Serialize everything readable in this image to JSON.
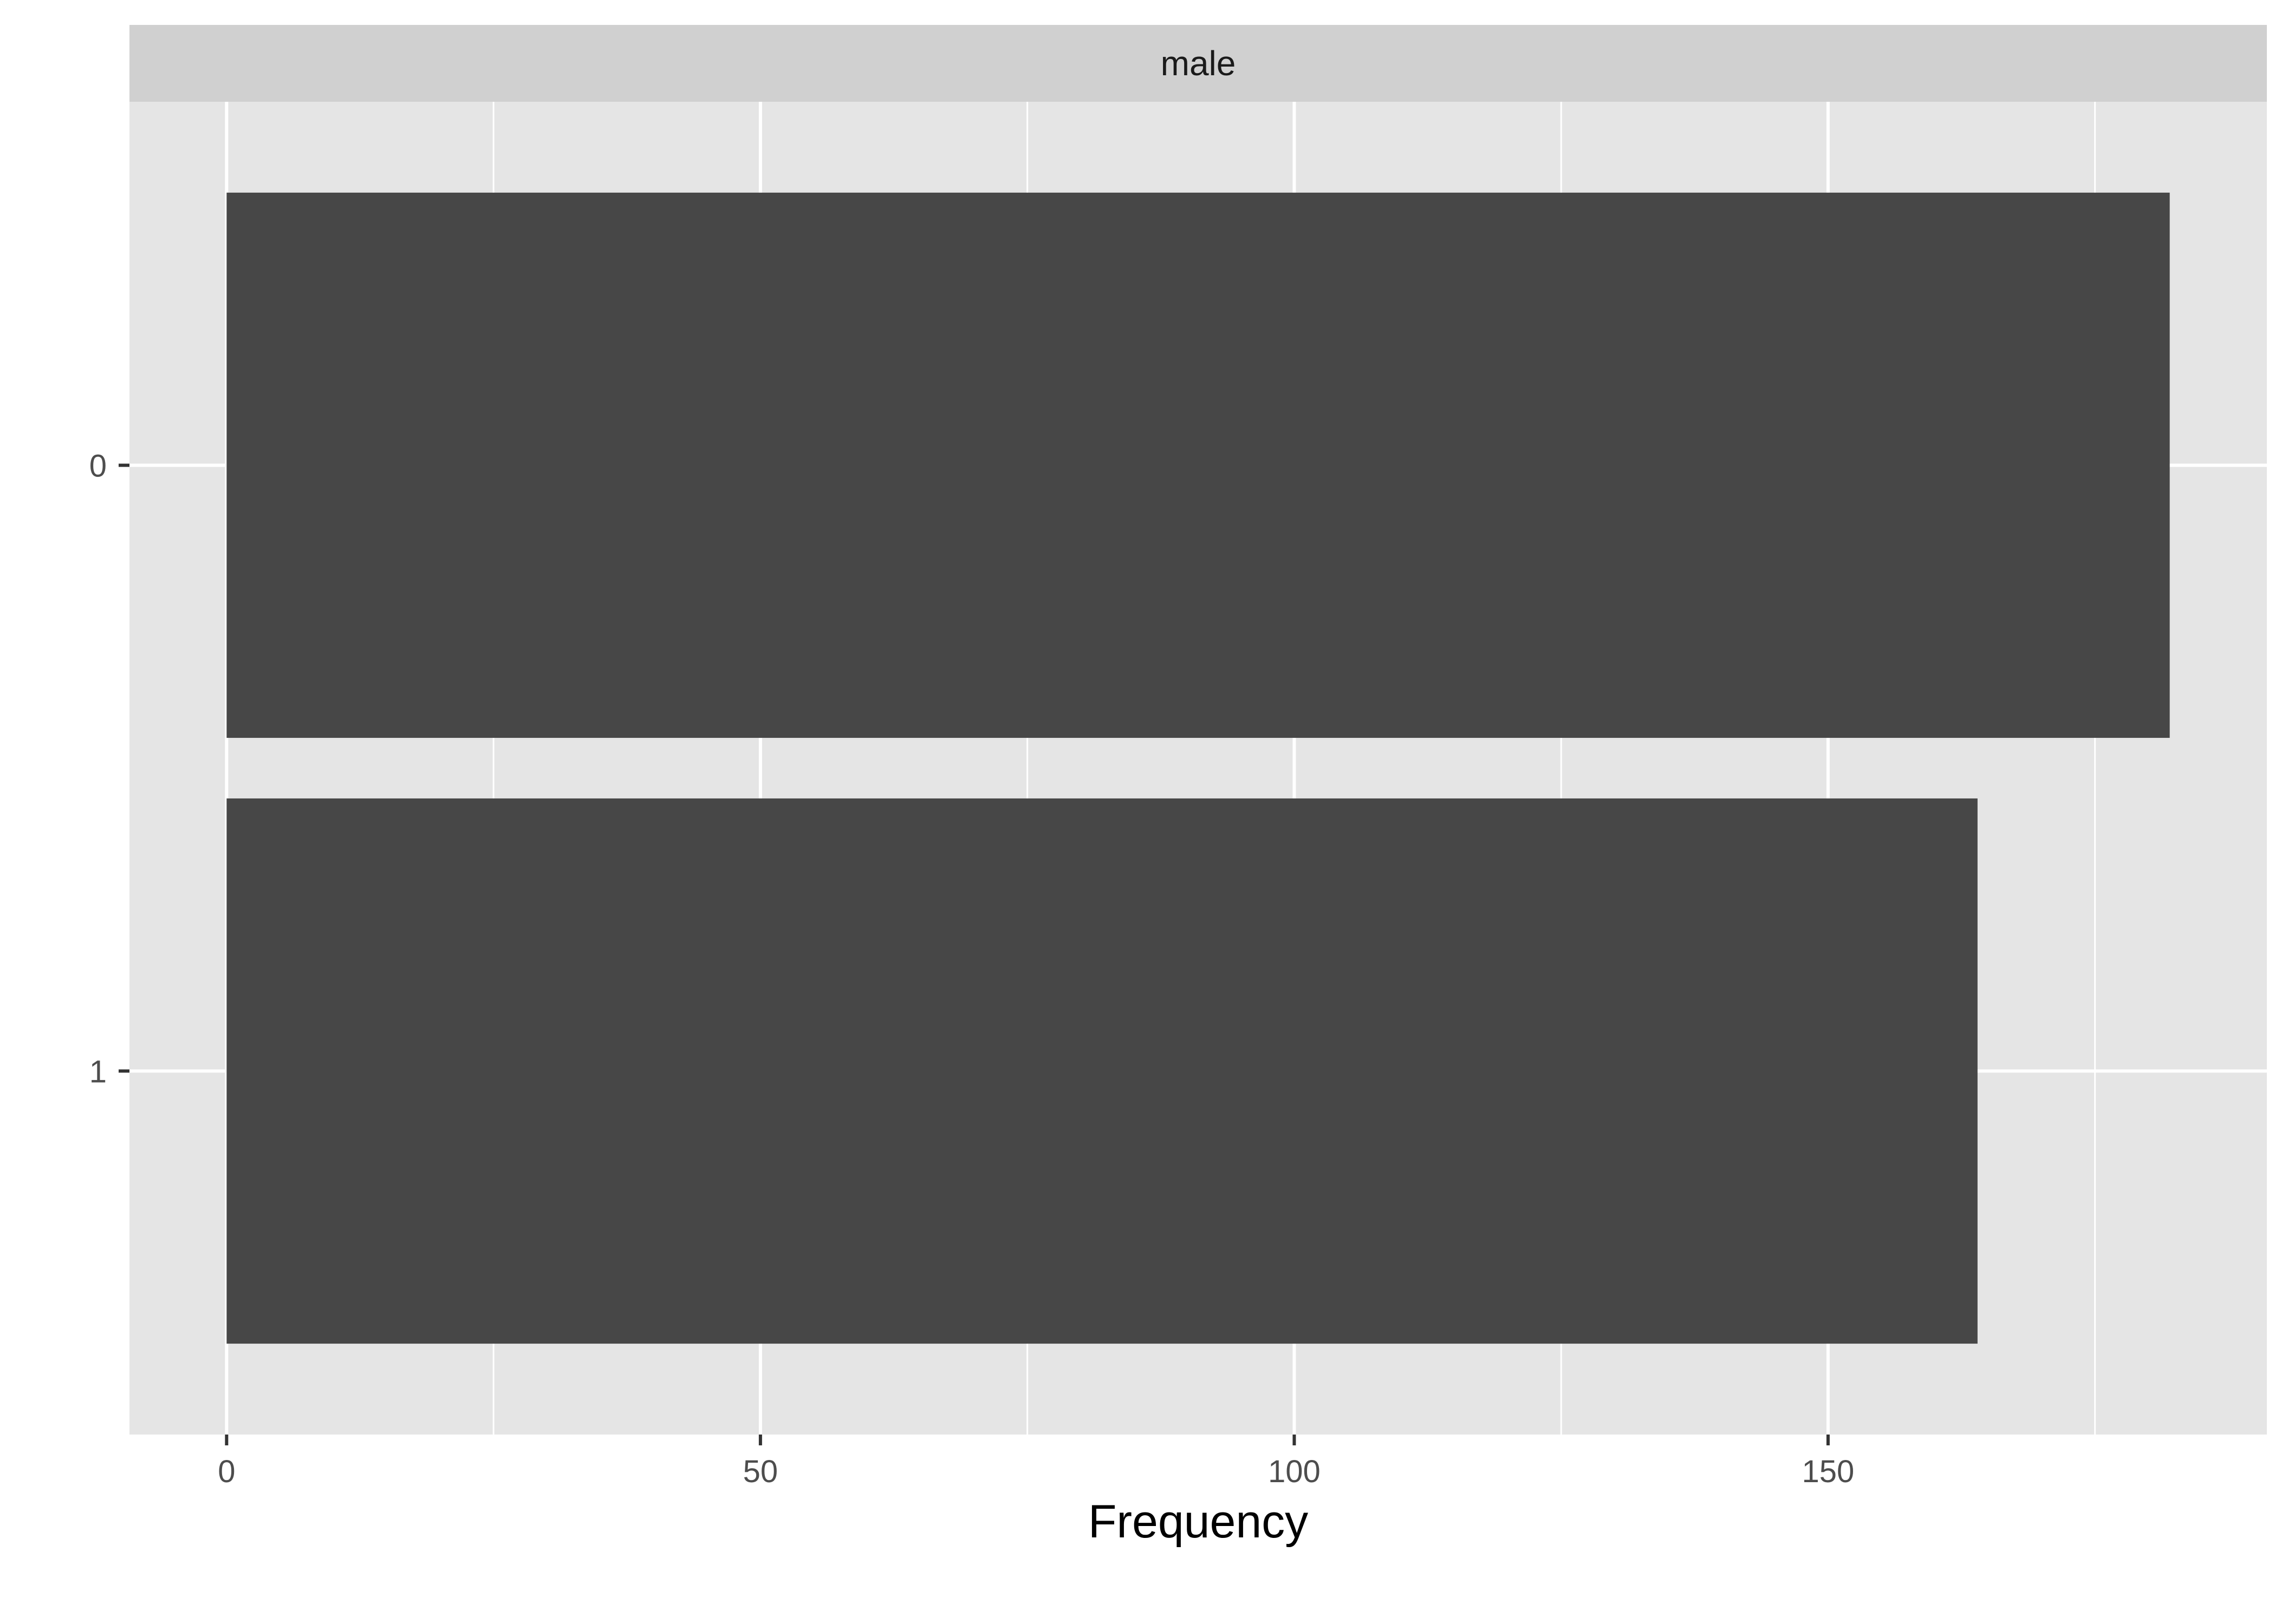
{
  "chart_data": {
    "type": "bar",
    "orientation": "horizontal",
    "facet_label": "male",
    "categories": [
      "0",
      "1"
    ],
    "values": [
      182,
      164
    ],
    "xlabel": "Frequency",
    "ylabel": "",
    "x_ticks": [
      0,
      50,
      100,
      150
    ],
    "x_minor_ticks": [
      25,
      75,
      125,
      175
    ],
    "xlim": [
      -9.1,
      191.1
    ],
    "grid": true,
    "colors": {
      "panel_background": "#e5e5e5",
      "strip_background": "#d0d0d0",
      "gridline": "#ffffff",
      "bar_fill": "#474747"
    }
  }
}
